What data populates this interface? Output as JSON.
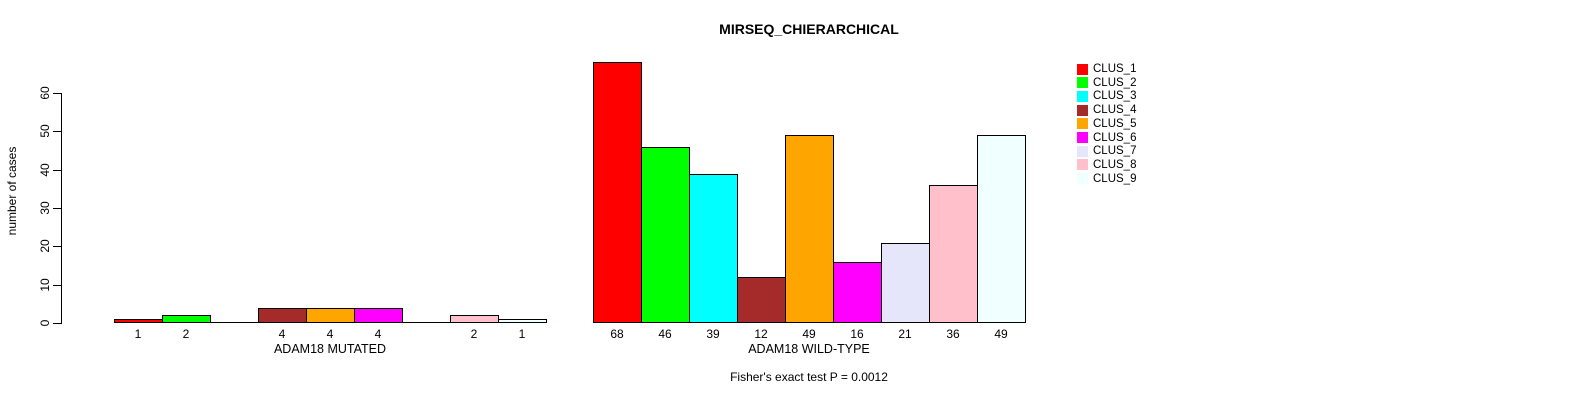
{
  "title": "MIRSEQ_CHIERARCHICAL",
  "y_axis": {
    "label": "number of cases",
    "ticks": [
      0,
      10,
      20,
      30,
      40,
      50,
      60
    ]
  },
  "footer": "Fisher's exact test P = 0.0012",
  "legend": {
    "items": [
      {
        "label": "CLUS_1",
        "color": "#FF0000"
      },
      {
        "label": "CLUS_2",
        "color": "#00FF00"
      },
      {
        "label": "CLUS_3",
        "color": "#00FFFF"
      },
      {
        "label": "CLUS_4",
        "color": "#A52A2A"
      },
      {
        "label": "CLUS_5",
        "color": "#FFA500"
      },
      {
        "label": "CLUS_6",
        "color": "#FF00FF"
      },
      {
        "label": "CLUS_7",
        "color": "#E6E6FA"
      },
      {
        "label": "CLUS_8",
        "color": "#FFC0CB"
      },
      {
        "label": "CLUS_9",
        "color": "#F0FFFF"
      }
    ]
  },
  "chart_data": {
    "type": "bar",
    "title": "MIRSEQ_CHIERARCHICAL",
    "ylabel": "number of cases",
    "ylim": [
      0,
      68
    ],
    "yticks": [
      0,
      10,
      20,
      30,
      40,
      50,
      60
    ],
    "grid": false,
    "legend_position": "right",
    "categories": [
      "CLUS_1",
      "CLUS_2",
      "CLUS_3",
      "CLUS_4",
      "CLUS_5",
      "CLUS_6",
      "CLUS_7",
      "CLUS_8",
      "CLUS_9"
    ],
    "colors": [
      "#FF0000",
      "#00FF00",
      "#00FFFF",
      "#A52A2A",
      "#FFA500",
      "#FF00FF",
      "#E6E6FA",
      "#FFC0CB",
      "#F0FFFF"
    ],
    "groups": [
      {
        "label": "ADAM18 MUTATED",
        "values": [
          1,
          2,
          0,
          4,
          4,
          4,
          0,
          2,
          1
        ]
      },
      {
        "label": "ADAM18 WILD-TYPE",
        "values": [
          68,
          46,
          39,
          12,
          49,
          16,
          21,
          36,
          49
        ]
      }
    ],
    "annotation": "Fisher's exact test P = 0.0012"
  }
}
